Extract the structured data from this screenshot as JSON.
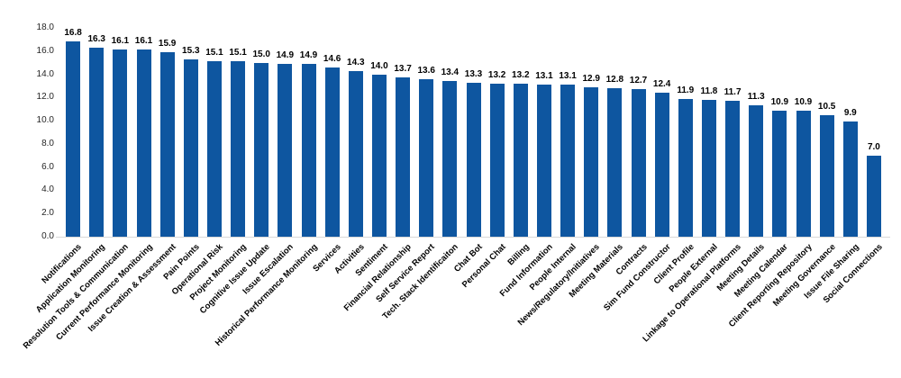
{
  "chart_data": {
    "type": "bar",
    "title": "",
    "xlabel": "",
    "ylabel": "",
    "legend": "none",
    "grid": "off",
    "ylim": [
      0,
      18
    ],
    "ytick_step": 2,
    "x_label_rotation_deg": 45,
    "bar_color": "#0E56A0",
    "axis_line_color": "#D9D9D9",
    "text_color": "#000000",
    "y_ticks": [
      "0.0",
      "2.0",
      "4.0",
      "6.0",
      "8.0",
      "10.0",
      "12.0",
      "14.0",
      "16.0",
      "18.0"
    ],
    "categories": [
      "Notifications",
      "Application Monitoring",
      "Resolution Tools & Communication",
      "Current Performance Monitoring",
      "Issue Creation & Assessment",
      "Pain Points",
      "Operational Risk",
      "Project Monitoring",
      "Cognitive Issue Update",
      "Issue Escalation",
      "Historical Performance Monitoring",
      "Services",
      "Activities",
      "Sentiment",
      "Financial Relationship",
      "Self Service Report",
      "Tech. Stack Identificaiton",
      "Chat Bot",
      "Personal Chat",
      "Billing",
      "Fund Information",
      "People Internal",
      "News/Regulatory/Initiatives",
      "Meeting Materials",
      "Contracts",
      "Sim Fund Constructor",
      "Client Profile",
      "People External",
      "Linkage to Operational Platforms",
      "Meeting Details",
      "Meeting Calendar",
      "Client Reporting Repository",
      "Meeting Governance",
      "Issue File Sharing",
      "Social Connections"
    ],
    "values": [
      16.8,
      16.3,
      16.1,
      16.1,
      15.9,
      15.3,
      15.1,
      15.1,
      15.0,
      14.9,
      14.9,
      14.6,
      14.3,
      14.0,
      13.7,
      13.6,
      13.4,
      13.3,
      13.2,
      13.2,
      13.1,
      13.1,
      12.9,
      12.8,
      12.7,
      12.4,
      11.9,
      11.8,
      11.7,
      11.3,
      10.9,
      10.9,
      10.5,
      9.9,
      7.0
    ],
    "value_labels": [
      "16.8",
      "16.3",
      "16.1",
      "16.1",
      "15.9",
      "15.3",
      "15.1",
      "15.1",
      "15.0",
      "14.9",
      "14.9",
      "14.6",
      "14.3",
      "14.0",
      "13.7",
      "13.6",
      "13.4",
      "13.3",
      "13.2",
      "13.2",
      "13.1",
      "13.1",
      "12.9",
      "12.8",
      "12.7",
      "12.4",
      "11.9",
      "11.8",
      "11.7",
      "11.3",
      "10.9",
      "10.9",
      "10.5",
      "9.9",
      "7.0"
    ]
  }
}
